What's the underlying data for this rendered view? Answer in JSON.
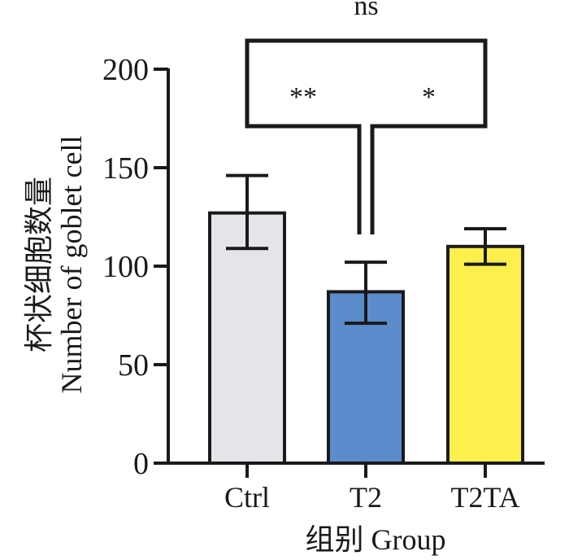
{
  "chart_data": {
    "type": "bar",
    "categories": [
      "Ctrl",
      "T2",
      "T2TA"
    ],
    "values": [
      127,
      87,
      110
    ],
    "errors": [
      {
        "low": 109,
        "high": 146
      },
      {
        "low": 71,
        "high": 102
      },
      {
        "low": 101,
        "high": 119
      }
    ],
    "bar_colors": [
      "#e3e5e8",
      "#5b8ccb",
      "#fdf04d"
    ],
    "ylabel_cn": "杯状细胞数量",
    "ylabel_en": "Number of goblet cell",
    "xlabel": "组别 Group",
    "ylim": [
      0,
      200
    ],
    "yticks": [
      0,
      50,
      100,
      150,
      200
    ],
    "significance": [
      {
        "from": "Ctrl",
        "to": "T2TA",
        "label": "ns"
      },
      {
        "from": "Ctrl",
        "to": "T2",
        "label": "**"
      },
      {
        "from": "T2",
        "to": "T2TA",
        "label": "*"
      }
    ]
  }
}
